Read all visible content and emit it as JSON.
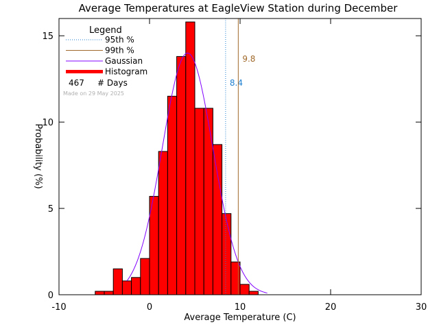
{
  "chart_data": {
    "type": "bar",
    "title": "Average Temperatures at EagleView Station during December",
    "xlabel": "Average Temperature (C)",
    "ylabel": "Probability (%)",
    "xlim": [
      -10,
      30
    ],
    "ylim": [
      0,
      16
    ],
    "xticks": [
      -10,
      0,
      10,
      20,
      30
    ],
    "yticks": [
      0,
      5,
      10,
      15
    ],
    "bin_width": 1,
    "bin_edges_start": -6,
    "histogram": [
      0.2,
      0.2,
      1.5,
      0.8,
      1.0,
      2.1,
      5.7,
      8.3,
      11.5,
      13.8,
      15.8,
      10.8,
      10.8,
      8.7,
      4.7,
      1.9,
      0.6,
      0.2
    ],
    "gaussian": {
      "mean": 4.2,
      "peak": 14.0,
      "sigma": 2.8,
      "x_range": [
        -2.5,
        13.0
      ]
    },
    "percentiles": [
      {
        "name": "95th %",
        "value": 8.4,
        "label": "8.4",
        "color": "#1f7fd0",
        "style": "dotted"
      },
      {
        "name": "99th %",
        "value": 9.8,
        "label": "9.8",
        "color": "#a0692a",
        "style": "solid"
      }
    ],
    "legend": {
      "title": "Legend",
      "position": "top-left",
      "entries": [
        {
          "label": "95th %",
          "color": "#1f7fd0",
          "style": "dotted"
        },
        {
          "label": "99th %",
          "color": "#a0692a",
          "style": "solid"
        },
        {
          "label": "Gaussian",
          "color": "#8000ff",
          "style": "solid"
        },
        {
          "label": "Histogram",
          "color": "#ff0000",
          "style": "thick"
        }
      ],
      "days_count": "467",
      "days_label": "# Days",
      "made_on": "Made on 29 May 2025"
    },
    "colors": {
      "histogram_fill": "#ff0000",
      "gaussian": "#8000ff",
      "axis": "#000000"
    }
  }
}
